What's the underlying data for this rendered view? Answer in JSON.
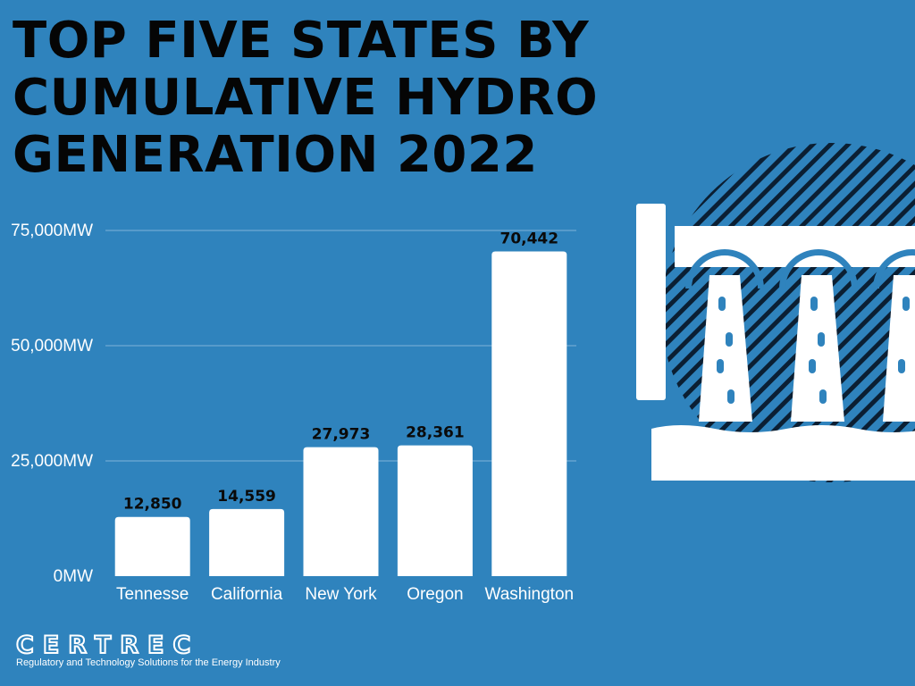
{
  "colors": {
    "background": "#2f83bd",
    "bar": "#ffffff",
    "title": "#050505",
    "gridline": "#7fb3d9",
    "hatch": "#0b1f33"
  },
  "brand": {
    "name": "CERTREC",
    "tagline": "Regulatory and Technology Solutions for the Energy Industry",
    "icon": "certrec-logo"
  },
  "illustration": {
    "icon": "hydro-dam-icon"
  },
  "chart_data": {
    "type": "bar",
    "title": "TOP FIVE STATES BY CUMULATIVE HYDRO GENERATION 2022",
    "categories": [
      "Tennesse",
      "California",
      "New York",
      "Oregon",
      "Washington"
    ],
    "values": [
      12850,
      14559,
      27973,
      28361,
      70442
    ],
    "data_labels": [
      "12,850",
      "14,559",
      "27,973",
      "28,361",
      "70,442"
    ],
    "ylim": [
      0,
      75000
    ],
    "yticks": [
      0,
      25000,
      50000,
      75000
    ],
    "ytick_labels": [
      "0MW",
      "25,000MW",
      "50,000MW",
      "75,000MW"
    ],
    "grid": true,
    "xlabel": "",
    "ylabel": ""
  }
}
